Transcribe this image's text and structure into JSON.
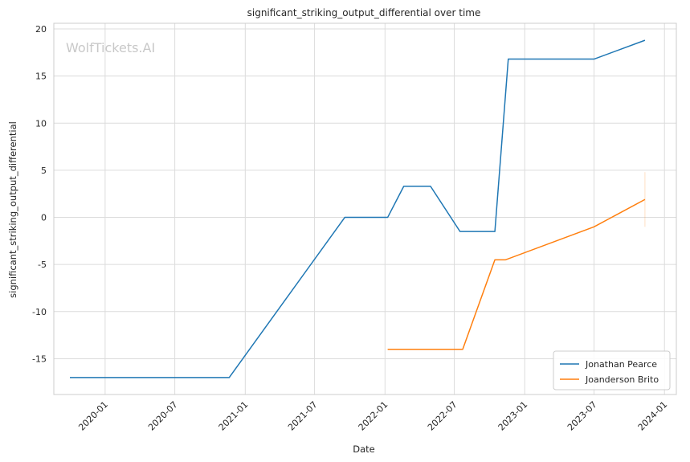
{
  "chart_data": {
    "type": "line",
    "title": "significant_striking_output_differential over time",
    "xlabel": "Date",
    "ylabel": "significant_striking_output_differential",
    "watermark": "WolfTickets.AI",
    "x_ticks": [
      "2020-01",
      "2020-07",
      "2021-01",
      "2021-07",
      "2022-01",
      "2022-07",
      "2023-01",
      "2023-07",
      "2024-01"
    ],
    "y_ticks": [
      20,
      15,
      10,
      5,
      0,
      -5,
      -10,
      -15
    ],
    "xlim": [
      "2019-08-20",
      "2024-02-01"
    ],
    "ylim": [
      -18.8,
      20.6
    ],
    "grid": true,
    "legend_position": "lower-right",
    "series": [
      {
        "name": "Jonathan Pearce",
        "color": "#1f77b4",
        "points": [
          {
            "x": "2019-10-01",
            "y": -17
          },
          {
            "x": "2020-11-20",
            "y": -17
          },
          {
            "x": "2021-09-18",
            "y": 0
          },
          {
            "x": "2022-01-08",
            "y": 0
          },
          {
            "x": "2022-02-19",
            "y": 3.3
          },
          {
            "x": "2022-04-30",
            "y": 3.3
          },
          {
            "x": "2022-07-16",
            "y": -1.5
          },
          {
            "x": "2022-10-15",
            "y": -1.5
          },
          {
            "x": "2022-11-19",
            "y": 16.8
          },
          {
            "x": "2023-07-01",
            "y": 16.8
          },
          {
            "x": "2023-11-11",
            "y": 18.8
          }
        ]
      },
      {
        "name": "Joanderson Brito",
        "color": "#ff7f0e",
        "points": [
          {
            "x": "2022-01-08",
            "y": -14
          },
          {
            "x": "2022-07-23",
            "y": -14
          },
          {
            "x": "2022-10-15",
            "y": -4.5
          },
          {
            "x": "2022-11-12",
            "y": -4.5
          },
          {
            "x": "2023-07-01",
            "y": -1
          },
          {
            "x": "2023-11-11",
            "y": 1.9
          }
        ],
        "error_band": {
          "x": "2023-11-11",
          "low": -1.0,
          "high": 4.8
        }
      }
    ]
  }
}
